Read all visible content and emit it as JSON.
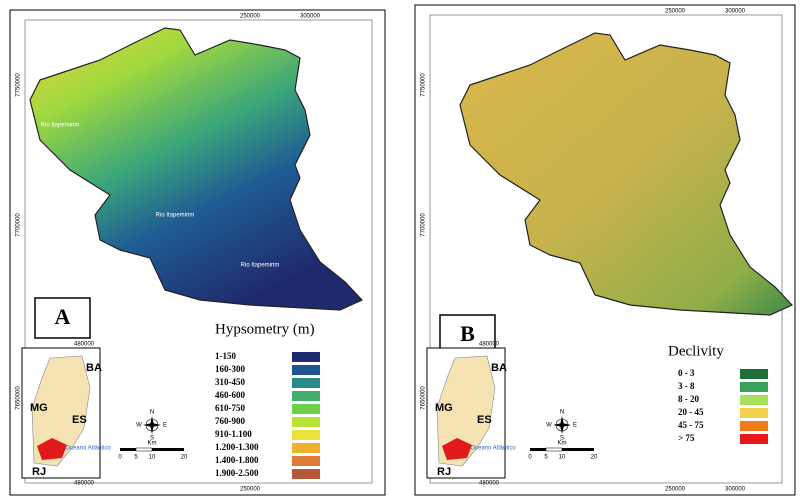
{
  "panels": [
    {
      "label": "A",
      "coords": {
        "top": [
          "250000",
          "300000"
        ],
        "left": [
          "7750000",
          "7700000"
        ],
        "bottom": [
          "250000"
        ]
      },
      "rivers": [
        "Rio Itapemirim",
        "Rio Itapemirim",
        "Rio Itapemirim"
      ],
      "inset": {
        "coords": [
          "480000",
          "7650000",
          "480000"
        ],
        "regions": [
          "BA",
          "MG",
          "ES",
          "RJ"
        ],
        "sea": "Oceano Atlântico"
      },
      "scale": {
        "ticks": [
          "0",
          "5",
          "10",
          "20"
        ],
        "unit": "Km"
      },
      "compass": [
        "N",
        "S",
        "E",
        "W"
      ],
      "legend": {
        "title": "Hypsometry (m)",
        "items": [
          {
            "label": "1-150",
            "color": "#1f2a6e"
          },
          {
            "label": "160-300",
            "color": "#1e5590"
          },
          {
            "label": "310-450",
            "color": "#2a8a8a"
          },
          {
            "label": "460-600",
            "color": "#3fae6a"
          },
          {
            "label": "610-750",
            "color": "#6ed04a"
          },
          {
            "label": "760-900",
            "color": "#b8e23a"
          },
          {
            "label": "910-1.100",
            "color": "#ece03a"
          },
          {
            "label": "1.200-1.300",
            "color": "#f0b030"
          },
          {
            "label": "1.400-1.800",
            "color": "#e07a3a"
          },
          {
            "label": "1.900-2.500",
            "color": "#b5573a"
          }
        ]
      }
    },
    {
      "label": "B",
      "coords": {
        "top": [
          "250000",
          "300000"
        ],
        "left": [
          "7750000",
          "7700000"
        ],
        "bottom": [
          "250000",
          "300000"
        ]
      },
      "rivers": [],
      "inset": {
        "coords": [
          "480000",
          "7650000",
          "480000"
        ],
        "regions": [
          "BA",
          "MG",
          "ES",
          "RJ"
        ],
        "sea": "Oceano Atlântico"
      },
      "scale": {
        "ticks": [
          "0",
          "5",
          "10",
          "20"
        ],
        "unit": "Km"
      },
      "compass": [
        "N",
        "S",
        "E",
        "W"
      ],
      "legend": {
        "title": "Declivity",
        "items": [
          {
            "label": "0 - 3",
            "color": "#1e6e3a"
          },
          {
            "label": "3 - 8",
            "color": "#3aa05a"
          },
          {
            "label": "8 - 20",
            "color": "#a6e05a"
          },
          {
            "label": "20 - 45",
            "color": "#f2d04a"
          },
          {
            "label": "45 - 75",
            "color": "#f07a1e"
          },
          {
            "label": "> 75",
            "color": "#e81818"
          }
        ]
      }
    }
  ]
}
